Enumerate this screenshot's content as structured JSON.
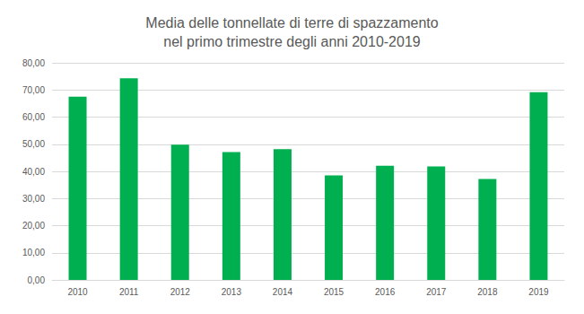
{
  "chart_data": {
    "type": "bar",
    "title": "Media delle tonnellate di terre di spazzamento\nnel primo trimestre degli anni 2010-2019",
    "categories": [
      "2010",
      "2011",
      "2012",
      "2013",
      "2014",
      "2015",
      "2016",
      "2017",
      "2018",
      "2019"
    ],
    "values": [
      67.5,
      74.3,
      49.8,
      47.1,
      48.2,
      38.5,
      42.1,
      41.8,
      37.2,
      69.2
    ],
    "color": "#00b050",
    "ylim": [
      0,
      80
    ],
    "yticks": [
      {
        "value": 0,
        "label": "0,00"
      },
      {
        "value": 10,
        "label": "10,00"
      },
      {
        "value": 20,
        "label": "20,00"
      },
      {
        "value": 30,
        "label": "30,00"
      },
      {
        "value": 40,
        "label": "40,00"
      },
      {
        "value": 50,
        "label": "50,00"
      },
      {
        "value": 60,
        "label": "60,00"
      },
      {
        "value": 70,
        "label": "70,00"
      },
      {
        "value": 80,
        "label": "80,00"
      }
    ],
    "grid": true
  }
}
